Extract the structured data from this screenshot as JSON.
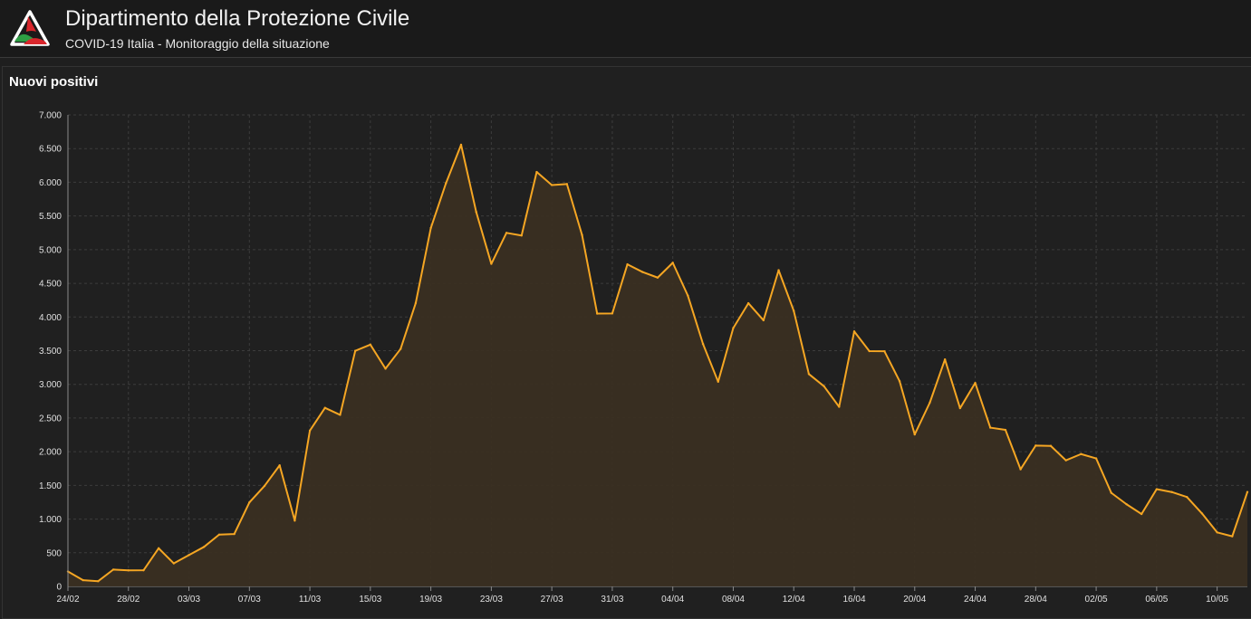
{
  "header": {
    "title": "Dipartimento della Protezione Civile",
    "subtitle": "COVID-19 Italia - Monitoraggio della situazione",
    "logo": "protezione-civile-logo"
  },
  "panel": {
    "title": "Nuovi positivi"
  },
  "colors": {
    "background": "#1f1f1f",
    "line": "#f5a623",
    "area": "#3a2f22",
    "grid": "#3c3c3c"
  },
  "chart_data": {
    "type": "area",
    "ylim": [
      0,
      7000
    ],
    "y_ticks": [
      0,
      500,
      1000,
      1500,
      2000,
      2500,
      3000,
      3500,
      4000,
      4500,
      5000,
      5500,
      6000,
      6500,
      7000
    ],
    "y_tick_labels": [
      "0",
      "500",
      "1.000",
      "1.500",
      "2.000",
      "2.500",
      "3.000",
      "3.500",
      "4.000",
      "4.500",
      "5.000",
      "5.500",
      "6.000",
      "6.500",
      "7.000"
    ],
    "x_ticks": [
      "24/02",
      "28/02",
      "03/03",
      "07/03",
      "11/03",
      "15/03",
      "19/03",
      "23/03",
      "27/03",
      "31/03",
      "04/04",
      "08/04",
      "12/04",
      "16/04",
      "20/04",
      "24/04",
      "28/04",
      "02/05",
      "06/05",
      "10/05"
    ],
    "x": [
      "24/02",
      "25/02",
      "26/02",
      "27/02",
      "28/02",
      "29/02",
      "01/03",
      "02/03",
      "03/03",
      "04/03",
      "05/03",
      "06/03",
      "07/03",
      "08/03",
      "09/03",
      "10/03",
      "11/03",
      "12/03",
      "13/03",
      "14/03",
      "15/03",
      "16/03",
      "17/03",
      "18/03",
      "19/03",
      "20/03",
      "21/03",
      "22/03",
      "23/03",
      "24/03",
      "25/03",
      "26/03",
      "27/03",
      "28/03",
      "29/03",
      "30/03",
      "31/03",
      "01/04",
      "02/04",
      "03/04",
      "04/04",
      "05/04",
      "06/04",
      "07/04",
      "08/04",
      "09/04",
      "10/04",
      "11/04",
      "12/04",
      "13/04",
      "14/04",
      "15/04",
      "16/04",
      "17/04",
      "18/04",
      "19/04",
      "20/04",
      "21/04",
      "22/04",
      "23/04",
      "24/04",
      "25/04",
      "26/04",
      "27/04",
      "28/04",
      "29/04",
      "30/04",
      "01/05",
      "02/05",
      "03/05",
      "04/05",
      "05/05",
      "06/05",
      "07/05",
      "08/05",
      "09/05",
      "10/05",
      "11/05",
      "12/05"
    ],
    "series": [
      {
        "values": [
          221,
          93,
          78,
          250,
          238,
          240,
          566,
          342,
          466,
          587,
          769,
          778,
          1247,
          1492,
          1797,
          977,
          2313,
          2651,
          2547,
          3497,
          3590,
          3233,
          3526,
          4207,
          5322,
          5986,
          6557,
          5560,
          4789,
          5249,
          5210,
          6153,
          5959,
          5974,
          5217,
          4050,
          4053,
          4782,
          4668,
          4585,
          4805,
          4316,
          3599,
          3039,
          3836,
          4204,
          3951,
          4694,
          4092,
          3153,
          2972,
          2667,
          3786,
          3493,
          3491,
          3047,
          2256,
          2729,
          3370,
          2646,
          3021,
          2357,
          2324,
          1739,
          2091,
          2086,
          1872,
          1965,
          1900,
          1389,
          1221,
          1075,
          1444,
          1401,
          1327,
          1083,
          802,
          744,
          1402
        ]
      }
    ]
  }
}
